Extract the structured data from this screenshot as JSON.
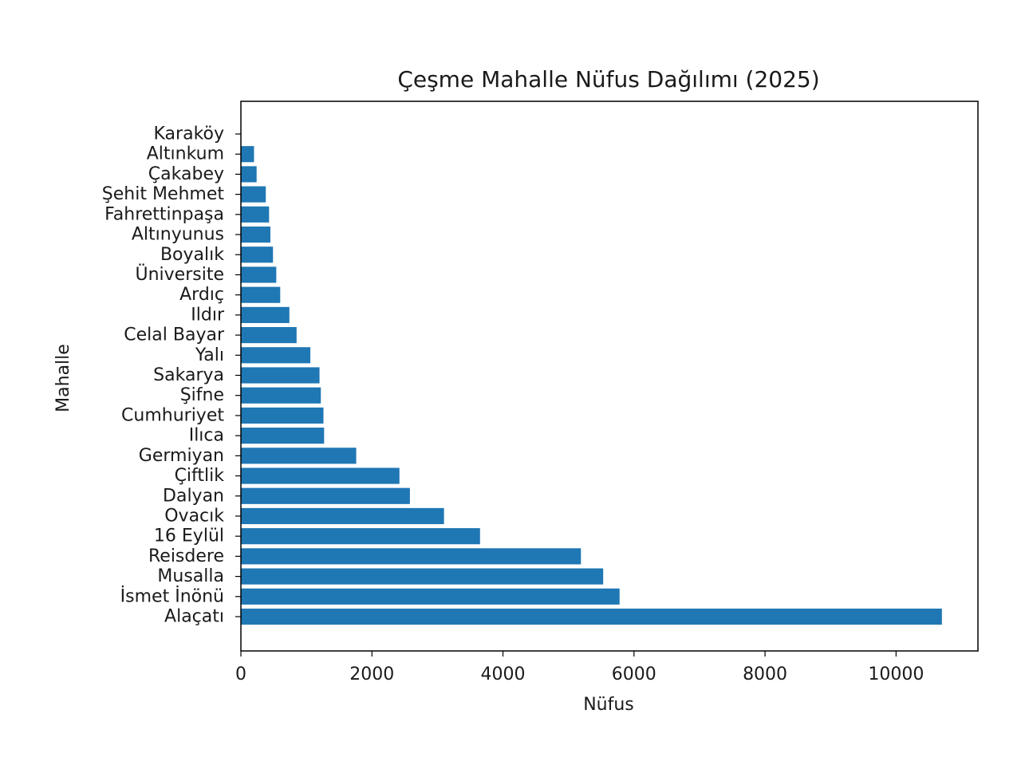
{
  "chart_data": {
    "type": "bar",
    "orientation": "horizontal",
    "title": "Çeşme Mahalle Nüfus Dağılımı (2025)",
    "xlabel": "Nüfus",
    "ylabel": "Mahalle",
    "xlim": [
      0,
      11250
    ],
    "xticks": [
      0,
      2000,
      4000,
      6000,
      8000,
      10000
    ],
    "grid": false,
    "bar_color": "#1f77b4",
    "categories": [
      "Alaçatı",
      "İsmet İnönü",
      "Musalla",
      "Reisdere",
      "16 Eylül",
      "Ovacık",
      "Dalyan",
      "Çiftlik",
      "Germiyan",
      "Ilıca",
      "Cumhuriyet",
      "Şifne",
      "Sakarya",
      "Yalı",
      "Celal Bayar",
      "Ildır",
      "Ardıç",
      "Üniversite",
      "Boyalık",
      "Altınyunus",
      "Fahrettinpaşa",
      "Şehit Mehmet",
      "Çakabey",
      "Altınkum",
      "Karaköy"
    ],
    "values": [
      10700,
      5780,
      5530,
      5190,
      3650,
      3100,
      2580,
      2420,
      1760,
      1270,
      1260,
      1220,
      1200,
      1060,
      850,
      740,
      600,
      540,
      490,
      450,
      430,
      380,
      240,
      200,
      0
    ]
  }
}
